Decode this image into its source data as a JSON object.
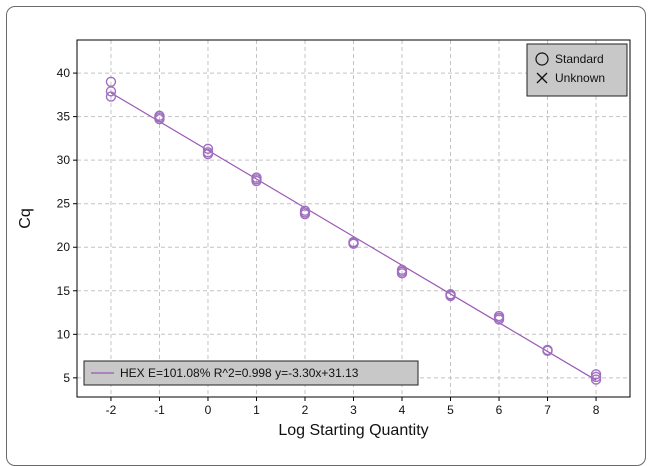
{
  "chart_data": {
    "type": "scatter",
    "xlabel": "Log Starting Quantity",
    "ylabel": "Cq",
    "xlim": [
      -2.7,
      8.7
    ],
    "ylim": [
      2.8,
      43.8
    ],
    "xticks": [
      -2,
      -1,
      0,
      1,
      2,
      3,
      4,
      5,
      6,
      7,
      8
    ],
    "yticks": [
      5,
      10,
      15,
      20,
      25,
      30,
      35,
      40
    ],
    "grid": true,
    "legend_placement": "top-right",
    "legend": [
      {
        "label": "Standard",
        "marker": "circle"
      },
      {
        "label": "Unknown",
        "marker": "cross"
      }
    ],
    "series": [
      {
        "name": "Standard",
        "marker": "circle",
        "color": "#a070c0",
        "points": [
          {
            "x": -2,
            "y": 39.0
          },
          {
            "x": -2,
            "y": 37.9
          },
          {
            "x": -2,
            "y": 37.3
          },
          {
            "x": -1,
            "y": 35.1
          },
          {
            "x": -1,
            "y": 34.9
          },
          {
            "x": -1,
            "y": 34.7
          },
          {
            "x": 0,
            "y": 31.3
          },
          {
            "x": 0,
            "y": 30.9
          },
          {
            "x": 0,
            "y": 30.7
          },
          {
            "x": 1,
            "y": 28.0
          },
          {
            "x": 1,
            "y": 27.8
          },
          {
            "x": 1,
            "y": 27.6
          },
          {
            "x": 2,
            "y": 24.2
          },
          {
            "x": 2,
            "y": 24.0
          },
          {
            "x": 2,
            "y": 23.8
          },
          {
            "x": 3,
            "y": 20.6
          },
          {
            "x": 3,
            "y": 20.5
          },
          {
            "x": 3,
            "y": 20.4
          },
          {
            "x": 4,
            "y": 17.4
          },
          {
            "x": 4,
            "y": 17.2
          },
          {
            "x": 4,
            "y": 17.0
          },
          {
            "x": 5,
            "y": 14.6
          },
          {
            "x": 5,
            "y": 14.5
          },
          {
            "x": 5,
            "y": 14.4
          },
          {
            "x": 6,
            "y": 12.1
          },
          {
            "x": 6,
            "y": 11.9
          },
          {
            "x": 6,
            "y": 11.7
          },
          {
            "x": 7,
            "y": 8.2
          },
          {
            "x": 7,
            "y": 8.1
          },
          {
            "x": 8,
            "y": 5.4
          },
          {
            "x": 8,
            "y": 5.1
          },
          {
            "x": 8,
            "y": 4.8
          }
        ]
      }
    ],
    "fit_line": {
      "slope": -3.3,
      "intercept": 31.13,
      "x_range": [
        -2,
        8
      ],
      "color": "#9b59b6",
      "label": "HEX E=101.08% R^2=0.998 y=-3.30x+31.13",
      "legend_placement": "bottom-left"
    }
  }
}
